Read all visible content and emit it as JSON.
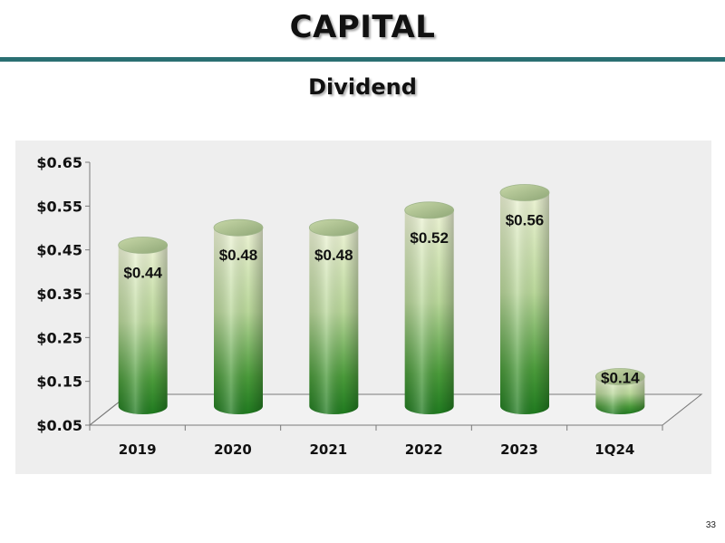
{
  "slide": {
    "title": "CAPITAL",
    "subtitle": "Dividend",
    "page_number": "33"
  },
  "colors": {
    "rule": "#2a6f72",
    "panel": "#eeeeee",
    "bar_top": "#eef4d6",
    "bar_bottom": "#1f7a1f"
  },
  "chart_data": {
    "type": "bar",
    "title": "",
    "xlabel": "",
    "ylabel": "",
    "categories": [
      "2019",
      "2020",
      "2021",
      "2022",
      "2023",
      "1Q24"
    ],
    "values": [
      0.44,
      0.48,
      0.48,
      0.52,
      0.56,
      0.14
    ],
    "data_labels": [
      "$0.44",
      "$0.48",
      "$0.48",
      "$0.52",
      "$0.56",
      "$0.14"
    ],
    "yticks": [
      "$0.05",
      "$0.15",
      "$0.25",
      "$0.35",
      "$0.45",
      "$0.55",
      "$0.65"
    ],
    "ytick_values": [
      0.05,
      0.15,
      0.25,
      0.35,
      0.45,
      0.55,
      0.65
    ],
    "ylim": [
      0.05,
      0.65
    ],
    "grid": false,
    "legend": "none",
    "style": "3d-cylinder"
  }
}
